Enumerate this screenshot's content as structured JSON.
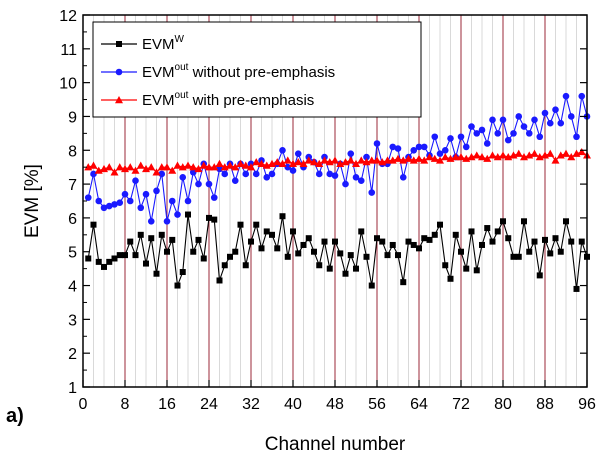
{
  "chart_data": {
    "type": "line",
    "panel_label": "a)",
    "xlabel": "Channel number",
    "ylabel": "EVM [%]",
    "xlim": [
      0,
      96
    ],
    "ylim": [
      1,
      12
    ],
    "xticks": [
      0,
      8,
      16,
      24,
      32,
      40,
      48,
      56,
      64,
      72,
      80,
      88,
      96
    ],
    "yticks": [
      1,
      2,
      3,
      4,
      5,
      6,
      7,
      8,
      9,
      10,
      11,
      12
    ],
    "grid": "vertical lines every 2 channels (light gray), dark red lines every 8 channels",
    "legend_position": "top-left",
    "x": [
      1,
      2,
      3,
      4,
      5,
      6,
      7,
      8,
      9,
      10,
      11,
      12,
      13,
      14,
      15,
      16,
      17,
      18,
      19,
      20,
      21,
      22,
      23,
      24,
      25,
      26,
      27,
      28,
      29,
      30,
      31,
      32,
      33,
      34,
      35,
      36,
      37,
      38,
      39,
      40,
      41,
      42,
      43,
      44,
      45,
      46,
      47,
      48,
      49,
      50,
      51,
      52,
      53,
      54,
      55,
      56,
      57,
      58,
      59,
      60,
      61,
      62,
      63,
      64,
      65,
      66,
      67,
      68,
      69,
      70,
      71,
      72,
      73,
      74,
      75,
      76,
      77,
      78,
      79,
      80,
      81,
      82,
      83,
      84,
      85,
      86,
      87,
      88,
      89,
      90,
      91,
      92,
      93,
      94,
      95,
      96
    ],
    "series": [
      {
        "name_main": "EVM",
        "name_sup": "W",
        "name_rest": "",
        "color": "#000000",
        "marker": "square",
        "values": [
          4.8,
          5.8,
          4.7,
          4.55,
          4.7,
          4.8,
          4.9,
          4.9,
          5.3,
          4.9,
          5.5,
          4.65,
          5.4,
          4.35,
          5.5,
          5.0,
          5.35,
          4.0,
          4.4,
          6.1,
          5.0,
          5.35,
          4.8,
          6.0,
          5.95,
          4.15,
          4.6,
          4.85,
          5.0,
          5.8,
          4.6,
          5.3,
          5.8,
          5.1,
          5.6,
          5.5,
          5.1,
          6.05,
          4.85,
          5.6,
          4.95,
          5.2,
          5.4,
          5.0,
          4.6,
          5.3,
          4.5,
          5.3,
          4.95,
          4.35,
          4.9,
          4.5,
          5.6,
          4.85,
          4.0,
          5.4,
          5.3,
          4.9,
          5.2,
          4.9,
          4.1,
          5.3,
          5.2,
          5.1,
          5.4,
          5.35,
          5.5,
          5.8,
          4.6,
          4.2,
          5.5,
          5.0,
          4.5,
          5.6,
          4.45,
          5.2,
          5.7,
          5.3,
          5.6,
          5.9,
          5.4,
          4.85,
          4.85,
          5.9,
          5.0,
          5.3,
          4.3,
          5.35,
          4.95,
          5.4,
          5.0,
          5.9,
          5.3,
          3.9,
          5.3,
          4.85
        ]
      },
      {
        "name_main": "EVM",
        "name_sup": "out",
        "name_rest": " without pre-emphasis",
        "color": "#1a1aff",
        "marker": "circle",
        "values": [
          6.6,
          7.3,
          6.5,
          6.3,
          6.35,
          6.4,
          6.45,
          6.7,
          6.5,
          7.1,
          6.3,
          6.7,
          5.9,
          6.8,
          7.3,
          5.9,
          6.5,
          6.1,
          7.2,
          6.5,
          7.35,
          7.0,
          7.6,
          7.0,
          6.6,
          7.45,
          7.3,
          7.6,
          7.1,
          7.6,
          7.3,
          7.6,
          7.3,
          7.7,
          7.2,
          7.3,
          7.6,
          8.0,
          7.5,
          7.4,
          7.9,
          7.5,
          7.8,
          7.65,
          7.3,
          7.8,
          7.3,
          7.25,
          7.6,
          7.0,
          7.9,
          7.2,
          7.1,
          7.8,
          6.75,
          8.2,
          7.6,
          7.6,
          8.1,
          8.05,
          7.2,
          7.8,
          8.0,
          8.1,
          8.1,
          7.85,
          8.4,
          7.9,
          8.0,
          8.35,
          7.8,
          8.4,
          8.1,
          8.7,
          8.5,
          8.6,
          8.2,
          8.9,
          8.5,
          8.9,
          8.3,
          8.5,
          9.0,
          8.7,
          8.5,
          8.9,
          8.4,
          9.1,
          8.8,
          9.2,
          8.8,
          9.6,
          9.0,
          8.4,
          9.6,
          9.0
        ]
      },
      {
        "name_main": "EVM",
        "name_sup": "out",
        "name_rest": " with pre-emphasis",
        "color": "#ff0000",
        "marker": "triangle",
        "values": [
          7.5,
          7.55,
          7.4,
          7.45,
          7.5,
          7.35,
          7.5,
          7.45,
          7.5,
          7.4,
          7.55,
          7.45,
          7.5,
          7.35,
          7.5,
          7.5,
          7.4,
          7.55,
          7.5,
          7.55,
          7.5,
          7.45,
          7.55,
          7.5,
          7.5,
          7.6,
          7.5,
          7.55,
          7.5,
          7.6,
          7.55,
          7.5,
          7.65,
          7.6,
          7.55,
          7.6,
          7.65,
          7.6,
          7.7,
          7.6,
          7.65,
          7.6,
          7.7,
          7.65,
          7.6,
          7.7,
          7.65,
          7.7,
          7.6,
          7.65,
          7.7,
          7.6,
          7.7,
          7.65,
          7.7,
          7.7,
          7.65,
          7.7,
          7.7,
          7.75,
          7.7,
          7.75,
          7.7,
          7.75,
          7.7,
          7.8,
          7.75,
          7.7,
          7.8,
          7.75,
          7.8,
          7.8,
          7.75,
          7.8,
          7.85,
          7.8,
          7.75,
          7.85,
          7.8,
          7.85,
          7.8,
          7.85,
          7.9,
          7.8,
          7.85,
          7.9,
          7.8,
          7.85,
          7.9,
          7.7,
          7.85,
          7.9,
          7.8,
          7.9,
          7.95,
          7.85
        ]
      }
    ]
  }
}
